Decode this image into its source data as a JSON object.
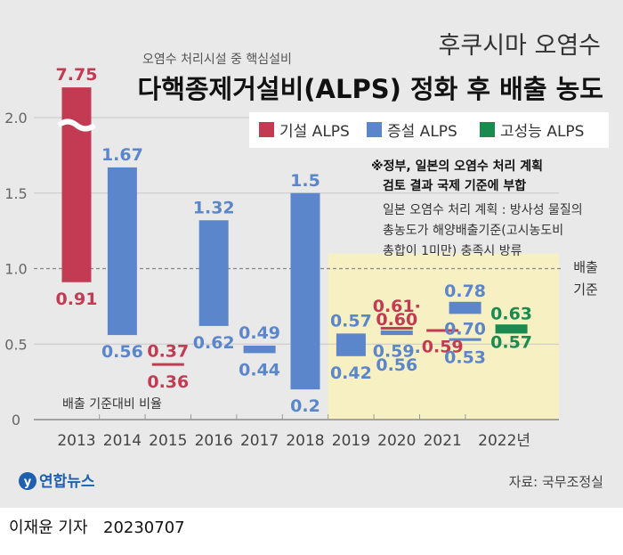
{
  "header": {
    "kicker": "후쿠시마 오염수",
    "subtitle": "오염수 처리시설 중 핵심설비",
    "title": "다핵종제거설비(ALPS) 정화 후 배출 농도"
  },
  "note": {
    "heading_line1": "※정부, 일본의 오염수 처리 계획",
    "heading_line2": "검토 결과 국제 기준에 부합",
    "body_line1": "일본 오염수 처리 계획 : 방사성 물질의",
    "body_line2": "총농도가 해양배출기준(고시농도비",
    "body_line3": "총합이 1미만) 충족시 방류"
  },
  "reference_line": {
    "line1": "배출",
    "line2": "기준"
  },
  "axis_caption": "배출 기준대비 비율",
  "footer": {
    "logo_text": "연합뉴스",
    "source": "자료: 국무조정실"
  },
  "caption": {
    "reporter": "이재윤 기자",
    "date": "20230707"
  },
  "colors": {
    "existing": "#c23b52",
    "extended": "#5b86cc",
    "high_performance": "#1a8a4e",
    "background": "#e9e9e9",
    "highlight": "#f7f0c3",
    "grid": "#c8c8c8"
  },
  "chart_data": {
    "type": "bar",
    "subtype": "floating range (min–max)",
    "ylim": [
      0,
      2.2
    ],
    "yticks": [
      "0",
      "0.5",
      "1.0",
      "1.5",
      "2.0"
    ],
    "ytick_values": [
      0,
      0.5,
      1.0,
      1.5,
      2.0
    ],
    "axis_break_label": "7.75",
    "reference_value": 1.0,
    "categories": [
      "2013",
      "2014",
      "2015",
      "2016",
      "2017",
      "2018",
      "2019",
      "2020",
      "2021",
      "2022년"
    ],
    "highlight_from": "2019",
    "legend_position": "top-right",
    "series": [
      {
        "name": "기설 ALPS",
        "color_key": "existing",
        "color": "#c23b52"
      },
      {
        "name": "증설 ALPS",
        "color_key": "extended",
        "color": "#5b86cc"
      },
      {
        "name": "고성능 ALPS",
        "color_key": "high_performance",
        "color": "#1a8a4e"
      }
    ],
    "ranges": [
      {
        "category": "2013",
        "series": "기설 ALPS",
        "min": 0.91,
        "max": 7.75,
        "broken": true,
        "labels": [
          {
            "text": "7.75",
            "at": 2.35,
            "pos": "above"
          },
          {
            "text": "0.91",
            "at": 0.91,
            "pos": "below"
          }
        ]
      },
      {
        "category": "2014",
        "series": "증설 ALPS",
        "min": 0.56,
        "max": 1.67,
        "labels": [
          {
            "text": "1.67",
            "at": 1.67,
            "pos": "above"
          },
          {
            "text": "0.56",
            "at": 0.56,
            "pos": "below"
          }
        ]
      },
      {
        "category": "2015",
        "series": "기설 ALPS",
        "min": 0.36,
        "max": 0.37,
        "labels": [
          {
            "text": "0.37",
            "at": 0.37,
            "pos": "above"
          },
          {
            "text": "0.36",
            "at": 0.36,
            "pos": "below"
          }
        ]
      },
      {
        "category": "2016",
        "series": "증설 ALPS",
        "min": 0.62,
        "max": 1.32,
        "labels": [
          {
            "text": "1.32",
            "at": 1.32,
            "pos": "above"
          },
          {
            "text": "0.62",
            "at": 0.62,
            "pos": "below"
          }
        ]
      },
      {
        "category": "2017",
        "series": "증설 ALPS",
        "min": 0.44,
        "max": 0.49,
        "labels": [
          {
            "text": "0.49",
            "at": 0.49,
            "pos": "above"
          },
          {
            "text": "0.44",
            "at": 0.44,
            "pos": "below"
          }
        ]
      },
      {
        "category": "2018",
        "series": "증설 ALPS",
        "min": 0.2,
        "max": 1.5,
        "labels": [
          {
            "text": "1.5",
            "at": 1.5,
            "pos": "above"
          },
          {
            "text": "0.2",
            "at": 0.2,
            "pos": "below"
          }
        ]
      },
      {
        "category": "2019",
        "series": "증설 ALPS",
        "min": 0.42,
        "max": 0.57,
        "labels": [
          {
            "text": "0.57",
            "at": 0.57,
            "pos": "above"
          },
          {
            "text": "0.42",
            "at": 0.42,
            "pos": "below"
          }
        ]
      },
      {
        "category": "2020",
        "series": "기설 ALPS",
        "min": 0.6,
        "max": 0.61,
        "labels": [
          {
            "text": "0.61·",
            "at": 0.75,
            "pos": "center"
          },
          {
            "text": "0.60",
            "at": 0.66,
            "pos": "center"
          }
        ]
      },
      {
        "category": "2020",
        "series": "증설 ALPS",
        "min": 0.56,
        "max": 0.59,
        "labels": [
          {
            "text": "0.59·",
            "at": 0.45,
            "pos": "center"
          },
          {
            "text": "0.56",
            "at": 0.36,
            "pos": "center"
          }
        ]
      },
      {
        "category": "2021",
        "series": "기설 ALPS",
        "min": 0.59,
        "max": 0.59,
        "labels": [
          {
            "text": "0.59",
            "at": 0.48,
            "pos": "center"
          }
        ]
      },
      {
        "category": "2022년",
        "series": "증설 ALPS",
        "min": 0.7,
        "max": 0.78,
        "offset": -1,
        "labels": [
          {
            "text": "0.78",
            "at": 0.85,
            "pos": "center"
          },
          {
            "text": "0.70",
            "at": 0.6,
            "pos": "center"
          }
        ]
      },
      {
        "category": "2022년",
        "series": "증설 ALPS",
        "min": 0.53,
        "max": 0.53,
        "offset": -1,
        "labels": [
          {
            "text": "0.53",
            "at": 0.41,
            "pos": "center"
          }
        ]
      },
      {
        "category": "2022년",
        "series": "고성능 ALPS",
        "min": 0.57,
        "max": 0.63,
        "offset": 1,
        "labels": [
          {
            "text": "0.63",
            "at": 0.7,
            "pos": "center"
          },
          {
            "text": "0.57",
            "at": 0.51,
            "pos": "center"
          }
        ]
      }
    ]
  }
}
